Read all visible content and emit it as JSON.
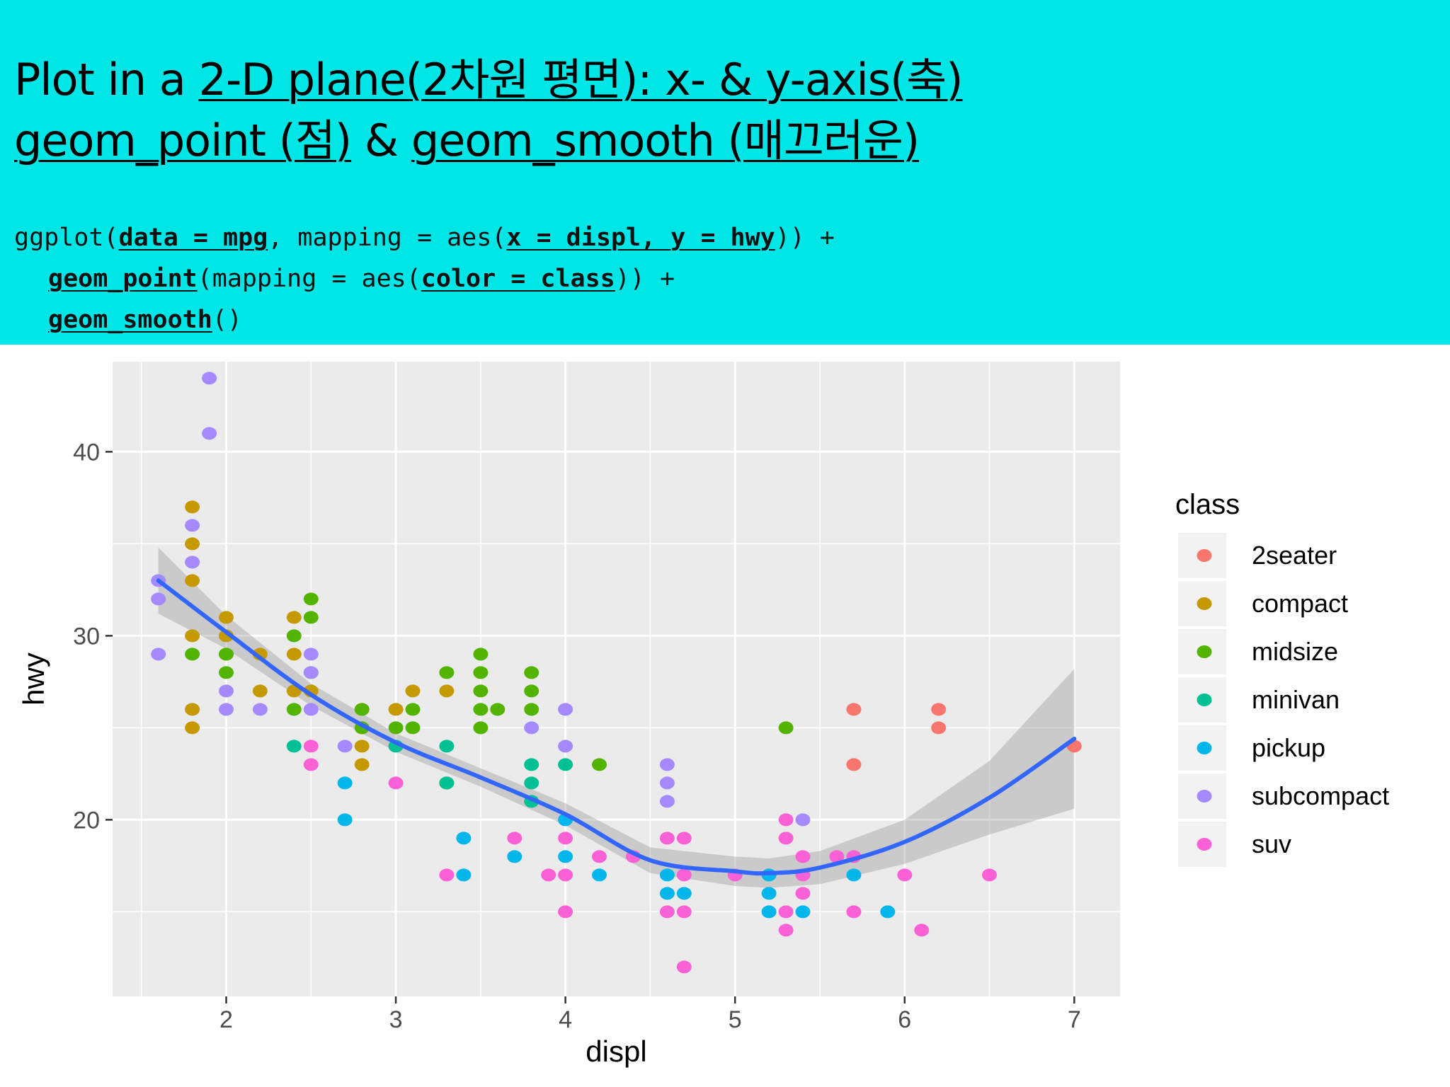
{
  "title": {
    "line1": [
      {
        "text": "Plot in a ",
        "u": false
      },
      {
        "text": "2-D plane(2차원 평면): x- & y-axis(축)",
        "u": true
      }
    ],
    "line2": [
      {
        "text": "geom_point (점)",
        "u": true
      },
      {
        "text": " & ",
        "u": false
      },
      {
        "text": "geom_smooth (매끄러운)",
        "u": true
      }
    ]
  },
  "code": {
    "line1": [
      {
        "text": "ggplot(",
        "u": false
      },
      {
        "text": "data = mpg",
        "u": true
      },
      {
        "text": ", mapping = aes(",
        "u": false
      },
      {
        "text": "x = displ, y = hwy",
        "u": true
      },
      {
        "text": ")) +",
        "u": false
      }
    ],
    "line2": [
      {
        "text": "geom_point",
        "u": true
      },
      {
        "text": "(mapping = aes(",
        "u": false
      },
      {
        "text": "color = class",
        "u": true
      },
      {
        "text": ")) +",
        "u": false
      }
    ],
    "line3": [
      {
        "text": "geom_smooth",
        "u": true
      },
      {
        "text": "()",
        "u": false
      }
    ]
  },
  "chart_data": {
    "type": "scatter",
    "xlabel": "displ",
    "ylabel": "hwy",
    "xlim": [
      1.33,
      7.27
    ],
    "ylim": [
      10.4,
      44.9
    ],
    "xticks": [
      2,
      3,
      4,
      5,
      6,
      7
    ],
    "yticks": [
      20,
      30,
      40
    ],
    "grid": true,
    "legend": {
      "title": "class",
      "position": "right",
      "entries": [
        "2seater",
        "compact",
        "midsize",
        "minivan",
        "pickup",
        "subcompact",
        "suv"
      ]
    },
    "colors": {
      "2seater": "#F8766D",
      "compact": "#C49A00",
      "midsize": "#53B400",
      "minivan": "#00C094",
      "pickup": "#00B6EB",
      "subcompact": "#A58AFF",
      "suv": "#FB61D7",
      "smooth": "#3366FF",
      "ribbon": "#999999",
      "panel": "#EBEBEB"
    },
    "series": [
      {
        "name": "2seater",
        "points": [
          [
            5.7,
            26
          ],
          [
            5.7,
            23
          ],
          [
            6.2,
            26
          ],
          [
            6.2,
            25
          ],
          [
            7.0,
            24
          ]
        ]
      },
      {
        "name": "compact",
        "points": [
          [
            1.8,
            37
          ],
          [
            1.8,
            35
          ],
          [
            1.8,
            33
          ],
          [
            1.8,
            30
          ],
          [
            1.8,
            26
          ],
          [
            1.8,
            25
          ],
          [
            2.0,
            31
          ],
          [
            2.0,
            30
          ],
          [
            2.0,
            29
          ],
          [
            2.2,
            29
          ],
          [
            2.2,
            27
          ],
          [
            2.4,
            31
          ],
          [
            2.4,
            29
          ],
          [
            2.4,
            27
          ],
          [
            2.5,
            27
          ],
          [
            2.8,
            26
          ],
          [
            2.8,
            25
          ],
          [
            2.8,
            24
          ],
          [
            2.8,
            23
          ],
          [
            3.0,
            26
          ],
          [
            3.3,
            27
          ],
          [
            3.1,
            27
          ]
        ]
      },
      {
        "name": "midsize",
        "points": [
          [
            1.8,
            29
          ],
          [
            2.0,
            29
          ],
          [
            2.0,
            28
          ],
          [
            2.4,
            30
          ],
          [
            2.4,
            26
          ],
          [
            2.5,
            32
          ],
          [
            2.5,
            31
          ],
          [
            2.5,
            28
          ],
          [
            2.8,
            26
          ],
          [
            2.8,
            25
          ],
          [
            3.0,
            25
          ],
          [
            3.1,
            26
          ],
          [
            3.1,
            25
          ],
          [
            3.3,
            28
          ],
          [
            3.3,
            22
          ],
          [
            3.5,
            29
          ],
          [
            3.5,
            28
          ],
          [
            3.5,
            27
          ],
          [
            3.5,
            26
          ],
          [
            3.5,
            25
          ],
          [
            3.6,
            26
          ],
          [
            3.8,
            28
          ],
          [
            3.8,
            27
          ],
          [
            3.8,
            26
          ],
          [
            4.2,
            23
          ],
          [
            5.3,
            25
          ]
        ]
      },
      {
        "name": "minivan",
        "points": [
          [
            2.4,
            24
          ],
          [
            3.0,
            24
          ],
          [
            3.3,
            24
          ],
          [
            3.3,
            22
          ],
          [
            3.8,
            23
          ],
          [
            3.8,
            22
          ],
          [
            3.8,
            21
          ],
          [
            4.0,
            23
          ]
        ]
      },
      {
        "name": "pickup",
        "points": [
          [
            2.7,
            22
          ],
          [
            2.7,
            20
          ],
          [
            3.4,
            19
          ],
          [
            3.4,
            17
          ],
          [
            3.7,
            18
          ],
          [
            4.0,
            18
          ],
          [
            4.0,
            20
          ],
          [
            4.2,
            17
          ],
          [
            4.6,
            17
          ],
          [
            4.6,
            16
          ],
          [
            4.7,
            16
          ],
          [
            5.2,
            17
          ],
          [
            5.2,
            16
          ],
          [
            5.2,
            15
          ],
          [
            5.4,
            15
          ],
          [
            5.7,
            17
          ],
          [
            5.9,
            15
          ]
        ]
      },
      {
        "name": "subcompact",
        "points": [
          [
            1.6,
            33
          ],
          [
            1.6,
            32
          ],
          [
            1.6,
            29
          ],
          [
            1.8,
            36
          ],
          [
            1.8,
            34
          ],
          [
            1.9,
            44
          ],
          [
            1.9,
            41
          ],
          [
            2.0,
            27
          ],
          [
            2.0,
            26
          ],
          [
            2.2,
            26
          ],
          [
            2.5,
            29
          ],
          [
            2.5,
            28
          ],
          [
            2.5,
            26
          ],
          [
            2.7,
            24
          ],
          [
            3.8,
            25
          ],
          [
            4.0,
            26
          ],
          [
            4.0,
            24
          ],
          [
            4.6,
            23
          ],
          [
            4.6,
            22
          ],
          [
            4.6,
            21
          ],
          [
            5.4,
            20
          ]
        ]
      },
      {
        "name": "suv",
        "points": [
          [
            2.5,
            24
          ],
          [
            2.5,
            23
          ],
          [
            3.0,
            22
          ],
          [
            3.3,
            17
          ],
          [
            3.7,
            19
          ],
          [
            3.9,
            17
          ],
          [
            4.0,
            19
          ],
          [
            4.0,
            17
          ],
          [
            4.0,
            15
          ],
          [
            4.2,
            18
          ],
          [
            4.4,
            18
          ],
          [
            4.6,
            19
          ],
          [
            4.6,
            15
          ],
          [
            4.7,
            19
          ],
          [
            4.7,
            17
          ],
          [
            4.7,
            15
          ],
          [
            4.7,
            12
          ],
          [
            5.0,
            17
          ],
          [
            5.3,
            20
          ],
          [
            5.3,
            19
          ],
          [
            5.3,
            15
          ],
          [
            5.3,
            14
          ],
          [
            5.4,
            18
          ],
          [
            5.4,
            17
          ],
          [
            5.4,
            16
          ],
          [
            5.6,
            18
          ],
          [
            5.7,
            18
          ],
          [
            5.7,
            15
          ],
          [
            6.0,
            17
          ],
          [
            6.1,
            14
          ],
          [
            6.5,
            17
          ]
        ]
      }
    ],
    "smooth": {
      "x": [
        1.6,
        2.0,
        2.5,
        3.0,
        3.5,
        4.0,
        4.5,
        5.0,
        5.2,
        5.5,
        6.0,
        6.5,
        7.0
      ],
      "y": [
        33.0,
        30.2,
        26.8,
        24.2,
        22.3,
        20.3,
        17.8,
        17.2,
        17.1,
        17.4,
        18.8,
        21.2,
        24.4
      ],
      "se": [
        1.8,
        0.9,
        0.6,
        0.5,
        0.5,
        0.6,
        0.7,
        0.8,
        0.8,
        0.9,
        1.2,
        2.0,
        3.8
      ]
    }
  }
}
